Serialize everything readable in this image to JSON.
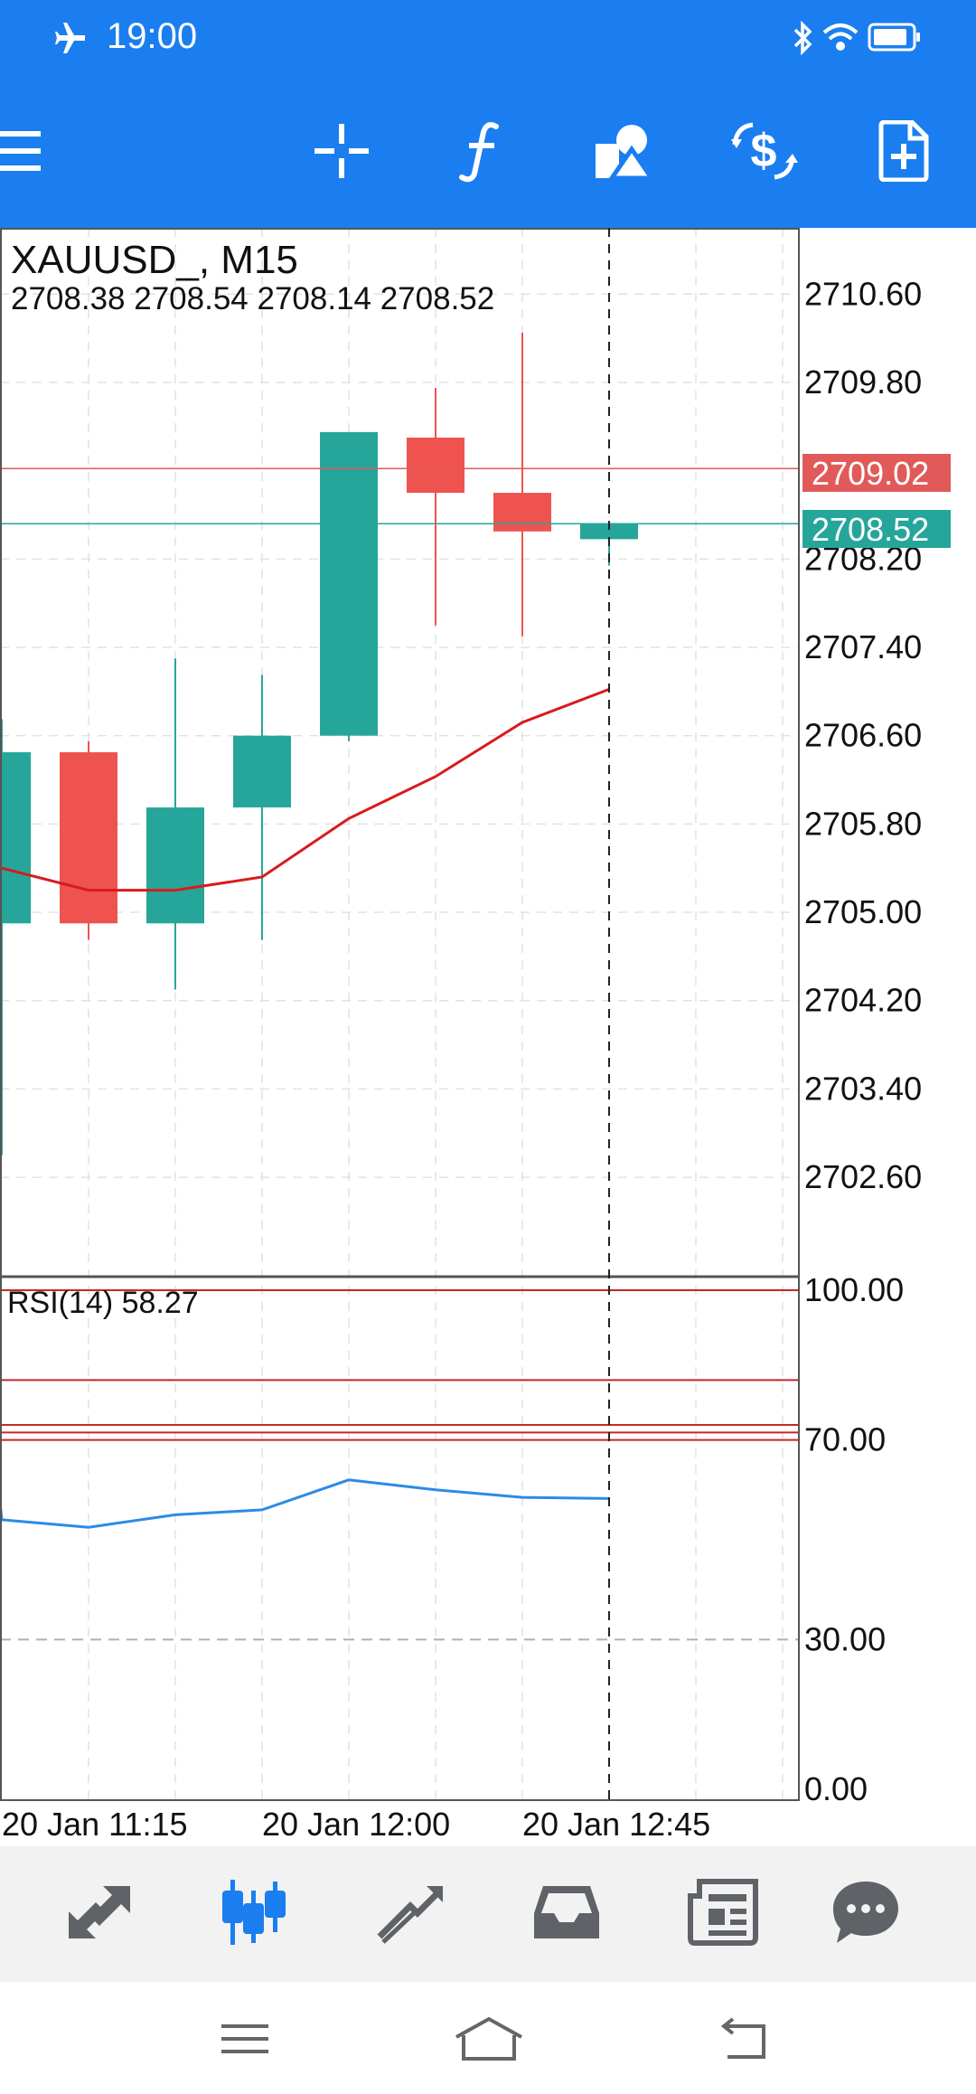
{
  "status_bar": {
    "time": "19:00",
    "icons": [
      "airplane-icon",
      "bluetooth-icon",
      "wifi-icon",
      "battery-icon"
    ]
  },
  "toolbar": {
    "buttons": [
      {
        "name": "menu-button",
        "icon": "hamburger-icon"
      },
      {
        "name": "crosshair-button",
        "icon": "crosshair-icon"
      },
      {
        "name": "indicators-button",
        "icon": "function-f-icon"
      },
      {
        "name": "objects-button",
        "icon": "shapes-icon"
      },
      {
        "name": "symbol-button",
        "icon": "dollar-cycle-icon"
      },
      {
        "name": "new-order-button",
        "icon": "new-document-icon"
      }
    ],
    "accent_color": "#1a7ef0"
  },
  "chart": {
    "symbol_label": "XAUUSD_, M15",
    "ohlc_label": "2708.38 2708.54 2708.14 2708.52",
    "ask_price_label": "2709.02",
    "bid_price_label": "2708.52",
    "rsi_label": "RSI(14) 58.27",
    "colors": {
      "bull": "#26a69a",
      "bear": "#ef5350",
      "ma_line": "#d81b1b",
      "rsi_line": "#2b8be6",
      "ask_line": "#e05a5a",
      "bid_line": "#26a69a",
      "rsi_levels": "#c62828"
    }
  },
  "chart_data": {
    "type": "candlestick",
    "symbol": "XAUUSD_",
    "timeframe": "M15",
    "y_axis_ticks": [
      "2710.60",
      "2709.80",
      "2708.20",
      "2707.40",
      "2706.60",
      "2705.80",
      "2705.00",
      "2704.20",
      "2703.40",
      "2702.60"
    ],
    "ylim": [
      2701.7,
      2711.2
    ],
    "x_axis_labels": [
      "20 Jan 11:15",
      "20 Jan 12:00",
      "20 Jan 12:45"
    ],
    "candles": [
      {
        "open": 2704.9,
        "high": 2706.75,
        "low": 2702.8,
        "close": 2706.45
      },
      {
        "open": 2706.45,
        "high": 2706.55,
        "low": 2704.75,
        "close": 2704.9
      },
      {
        "open": 2704.9,
        "high": 2707.3,
        "low": 2704.3,
        "close": 2705.95
      },
      {
        "open": 2705.95,
        "high": 2707.15,
        "low": 2704.75,
        "close": 2706.6
      },
      {
        "open": 2706.6,
        "high": 2709.35,
        "low": 2706.55,
        "close": 2709.35
      },
      {
        "open": 2709.3,
        "high": 2709.75,
        "low": 2707.6,
        "close": 2708.8
      },
      {
        "open": 2708.8,
        "high": 2710.25,
        "low": 2707.5,
        "close": 2708.45
      },
      {
        "open": 2708.38,
        "high": 2708.54,
        "low": 2708.14,
        "close": 2708.52
      }
    ],
    "ma_values": [
      2705.4,
      2705.2,
      2705.2,
      2705.32,
      2705.85,
      2706.23,
      2706.72,
      2707.02
    ],
    "ma_left_edge_value": 2705.42,
    "ask_price": 2709.02,
    "bid_price": 2708.52,
    "rsi": {
      "label": "RSI(14) 58.27",
      "y_axis_ticks": [
        "100.00",
        "70.00",
        "30.00",
        "0.00"
      ],
      "ylim": [
        0,
        100
      ],
      "level_lines": [
        100,
        82,
        73,
        71.5,
        70
      ],
      "dashed_levels": [
        30
      ],
      "values": [
        54.0,
        52.5,
        55.0,
        56.0,
        62.0,
        60.0,
        58.5,
        58.27
      ],
      "left_edge_value": 57.5
    },
    "grid": true
  },
  "bottom_nav": {
    "items": [
      {
        "name": "quotes-tab",
        "icon": "quotes-arrows-icon",
        "active": false
      },
      {
        "name": "chart-tab",
        "icon": "candlestick-icon",
        "active": true
      },
      {
        "name": "trade-tab",
        "icon": "trend-up-icon",
        "active": false
      },
      {
        "name": "history-tab",
        "icon": "inbox-icon",
        "active": false
      },
      {
        "name": "news-tab",
        "icon": "newspaper-icon",
        "active": false
      },
      {
        "name": "messages-tab",
        "icon": "chat-bubble-icon",
        "active": false
      }
    ]
  },
  "system_nav": {
    "buttons": [
      "menu-icon",
      "home-icon",
      "back-icon"
    ]
  }
}
